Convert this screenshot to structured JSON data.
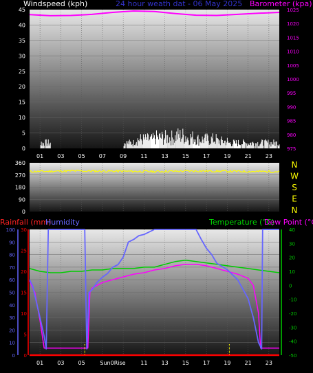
{
  "header": {
    "title": "24 hour weath dat - 06 May 2025",
    "windspeed_label": "Windspeed (kph)",
    "barometer_label": "Barometer (kpa)"
  },
  "colors": {
    "wind": "#ffffff",
    "barometer": "#ff00ff",
    "direction": "#ffff00",
    "rainfall": "#ff0000",
    "humidity": "#6666ff",
    "temperature": "#00cc00",
    "dewpoint": "#ff00ff",
    "sunrise": "#ffff00",
    "title": "#3333cc"
  },
  "time_ticks": [
    "01",
    "03",
    "05",
    "07",
    "09",
    "11",
    "13",
    "15",
    "17",
    "19",
    "21",
    "23"
  ],
  "chart_data": [
    {
      "type": "bar",
      "id": "wind_pressure",
      "series": [
        {
          "name": "Windspeed (kph)",
          "axis": "left",
          "ylim": [
            0,
            45
          ],
          "hourly_gusts": [
            0,
            3,
            0,
            0,
            0,
            0,
            0,
            0,
            0,
            3,
            5,
            5,
            6,
            6,
            7,
            6,
            5,
            5,
            4,
            3,
            3,
            3,
            3,
            3
          ]
        },
        {
          "name": "Barometer (kpa)",
          "axis": "right",
          "type": "line",
          "ylim": [
            975,
            1025
          ],
          "x": [
            0,
            2,
            4,
            6,
            8,
            10,
            12,
            14,
            16,
            18,
            20,
            22,
            24
          ],
          "values": [
            1023.2,
            1022.8,
            1022.9,
            1023.3,
            1024.0,
            1024.5,
            1024.3,
            1023.6,
            1023.0,
            1022.9,
            1023.3,
            1023.7,
            1024.0
          ]
        }
      ],
      "left_ticks": [
        0,
        5,
        10,
        15,
        20,
        25,
        30,
        35,
        40,
        45
      ],
      "right_ticks": [
        975,
        980,
        985,
        990,
        995,
        1000,
        1005,
        1010,
        1015,
        1020,
        1025
      ]
    },
    {
      "type": "line",
      "id": "wind_direction",
      "series": [
        {
          "name": "Direction",
          "x": [
            0,
            4,
            8,
            12,
            16,
            20,
            24
          ],
          "values": [
            295,
            300,
            298,
            296,
            300,
            297,
            295
          ]
        }
      ],
      "left_ticks": [
        0,
        90,
        180,
        270,
        360
      ],
      "right_labels": [
        "N",
        "W",
        "S",
        "E",
        "N"
      ]
    },
    {
      "type": "line",
      "id": "temp_humidity",
      "labels": {
        "rainfall": "Rainfall (mm)",
        "humidity": "Humidity",
        "temperature": "Temperature (°C)",
        "dewpoint": "Dew Point (°C)"
      },
      "series": [
        {
          "name": "Humidity",
          "axis": "left",
          "x": [
            0,
            0.3,
            1,
            1.4,
            1.6,
            1.8,
            5.3,
            5.5,
            5.7,
            6,
            6.5,
            7,
            7.5,
            8,
            8.5,
            9,
            9.5,
            10,
            10.5,
            11,
            12,
            13,
            14,
            15,
            16,
            16.5,
            17,
            17.5,
            18,
            19,
            20,
            21,
            21.5,
            22,
            22.3,
            22.4,
            22.5,
            24
          ],
          "values": [
            60,
            55,
            30,
            15,
            5,
            100,
            100,
            5,
            50,
            52,
            58,
            62,
            65,
            70,
            72,
            78,
            90,
            92,
            95,
            96,
            100,
            100,
            100,
            100,
            100,
            92,
            85,
            80,
            73,
            68,
            60,
            45,
            30,
            10,
            5,
            100,
            100,
            100
          ]
        },
        {
          "name": "Temperature (°C)",
          "axis": "right",
          "x": [
            0,
            1,
            2,
            3,
            4,
            5,
            6,
            7,
            8,
            9,
            10,
            11,
            12,
            13,
            14,
            15,
            16,
            17,
            18,
            19,
            20,
            21,
            22,
            23,
            24
          ],
          "values": [
            12,
            10,
            9,
            9,
            10,
            10,
            11,
            11,
            12,
            12,
            12,
            13,
            13,
            15,
            17,
            18,
            17,
            16,
            15,
            14,
            13,
            12,
            11,
            10,
            9
          ]
        },
        {
          "name": "Dew Point (°C)",
          "axis": "right",
          "x": [
            0,
            0.5,
            1,
            1.4,
            1.7,
            5.4,
            5.6,
            5.8,
            6,
            6.5,
            7,
            7.5,
            8,
            9,
            10,
            11,
            12,
            13,
            14,
            15,
            16,
            17,
            18,
            19,
            20,
            21,
            21.5,
            22,
            22.2,
            24
          ],
          "values": [
            3,
            -5,
            -25,
            -45,
            -45,
            -45,
            -45,
            -5,
            -2,
            0,
            2,
            3,
            4,
            6,
            8,
            9,
            11,
            12,
            14,
            15,
            15,
            14,
            12,
            10,
            8,
            5,
            0,
            -20,
            -45,
            -45
          ]
        },
        {
          "name": "Rainfall (mm)",
          "axis": "left",
          "x": [
            0,
            24
          ],
          "values": [
            0,
            0
          ]
        }
      ],
      "humidity_ticks": [
        0,
        10,
        20,
        30,
        40,
        50,
        60,
        70,
        80,
        90,
        100
      ],
      "rain_ticks": [
        0,
        5,
        10,
        15,
        20,
        25,
        30
      ],
      "temp_ticks": [
        -50,
        -40,
        -30,
        -20,
        -10,
        0,
        10,
        20,
        30,
        40
      ],
      "markers": {
        "sun_label": "Sun0Rise",
        "sun_hours": [
          5.3,
          19.2
        ]
      }
    }
  ]
}
